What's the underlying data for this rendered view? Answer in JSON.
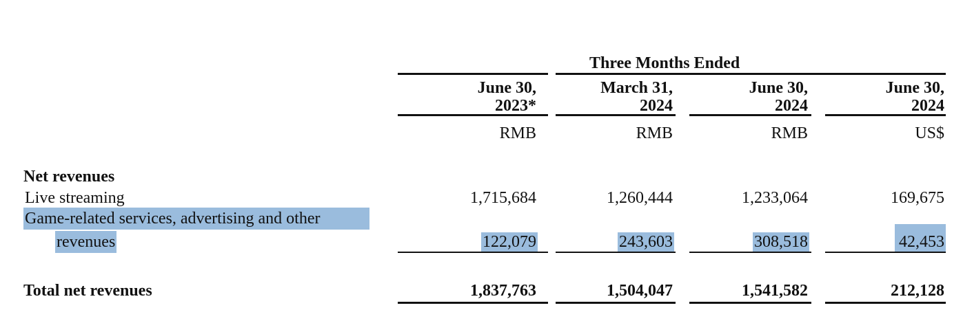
{
  "header": {
    "group_title": "Three Months Ended",
    "columns": [
      {
        "line1": "June 30,",
        "line2": "2023*",
        "currency": "RMB"
      },
      {
        "line1": "March 31,",
        "line2": "2024",
        "currency": "RMB"
      },
      {
        "line1": "June 30,",
        "line2": "2024",
        "currency": "RMB"
      },
      {
        "line1": "June 30,",
        "line2": "2024",
        "currency": "US$"
      }
    ]
  },
  "section_title": "Net revenues",
  "rows": [
    {
      "label": "Live streaming",
      "values": [
        "1,715,684",
        "1,260,444",
        "1,233,064",
        "169,675"
      ]
    },
    {
      "label_line1": "Game-related services, advertising and other",
      "label_line2": "revenues",
      "values": [
        "122,079",
        "243,603",
        "308,518",
        "42,453"
      ],
      "highlighted": true
    }
  ],
  "total": {
    "label": "Total net revenues",
    "values": [
      "1,837,763",
      "1,504,047",
      "1,541,582",
      "212,128"
    ]
  },
  "highlight_color": "#78a5d2"
}
